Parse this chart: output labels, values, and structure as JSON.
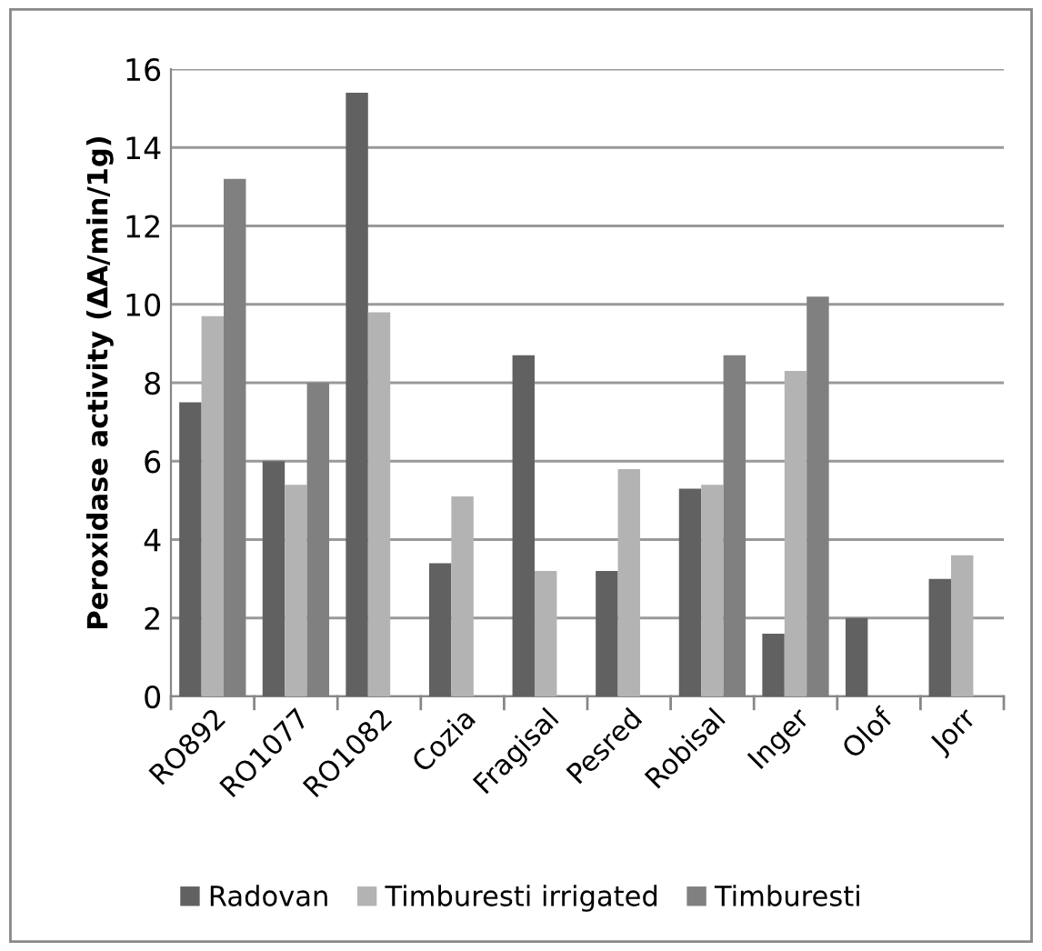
{
  "chart_data": {
    "type": "bar",
    "ylabel": "Peroxidase activity (ΔA/min/1g)",
    "categories": [
      "RO892",
      "RO1077",
      "RO1082",
      "Cozia",
      "Fragisal",
      "Pesred",
      "Robisal",
      "Inger",
      "Olof",
      "Jorr"
    ],
    "series": [
      {
        "name": "Radovan",
        "color": "#616161",
        "values": [
          7.5,
          6.0,
          15.4,
          3.4,
          8.7,
          3.2,
          5.3,
          1.6,
          2.0,
          3.0
        ]
      },
      {
        "name": "Timburesti irrigated",
        "color": "#b3b3b3",
        "values": [
          9.7,
          5.4,
          9.8,
          5.1,
          3.2,
          5.8,
          5.4,
          8.3,
          null,
          3.6
        ]
      },
      {
        "name": "Timburesti",
        "color": "#808080",
        "values": [
          13.2,
          8.0,
          null,
          null,
          null,
          null,
          8.7,
          10.2,
          null,
          null
        ]
      }
    ],
    "ylim": [
      0,
      16
    ],
    "yticks": [
      0,
      2,
      4,
      6,
      8,
      10,
      12,
      14,
      16
    ],
    "grid": "y",
    "legend": "bottom"
  }
}
